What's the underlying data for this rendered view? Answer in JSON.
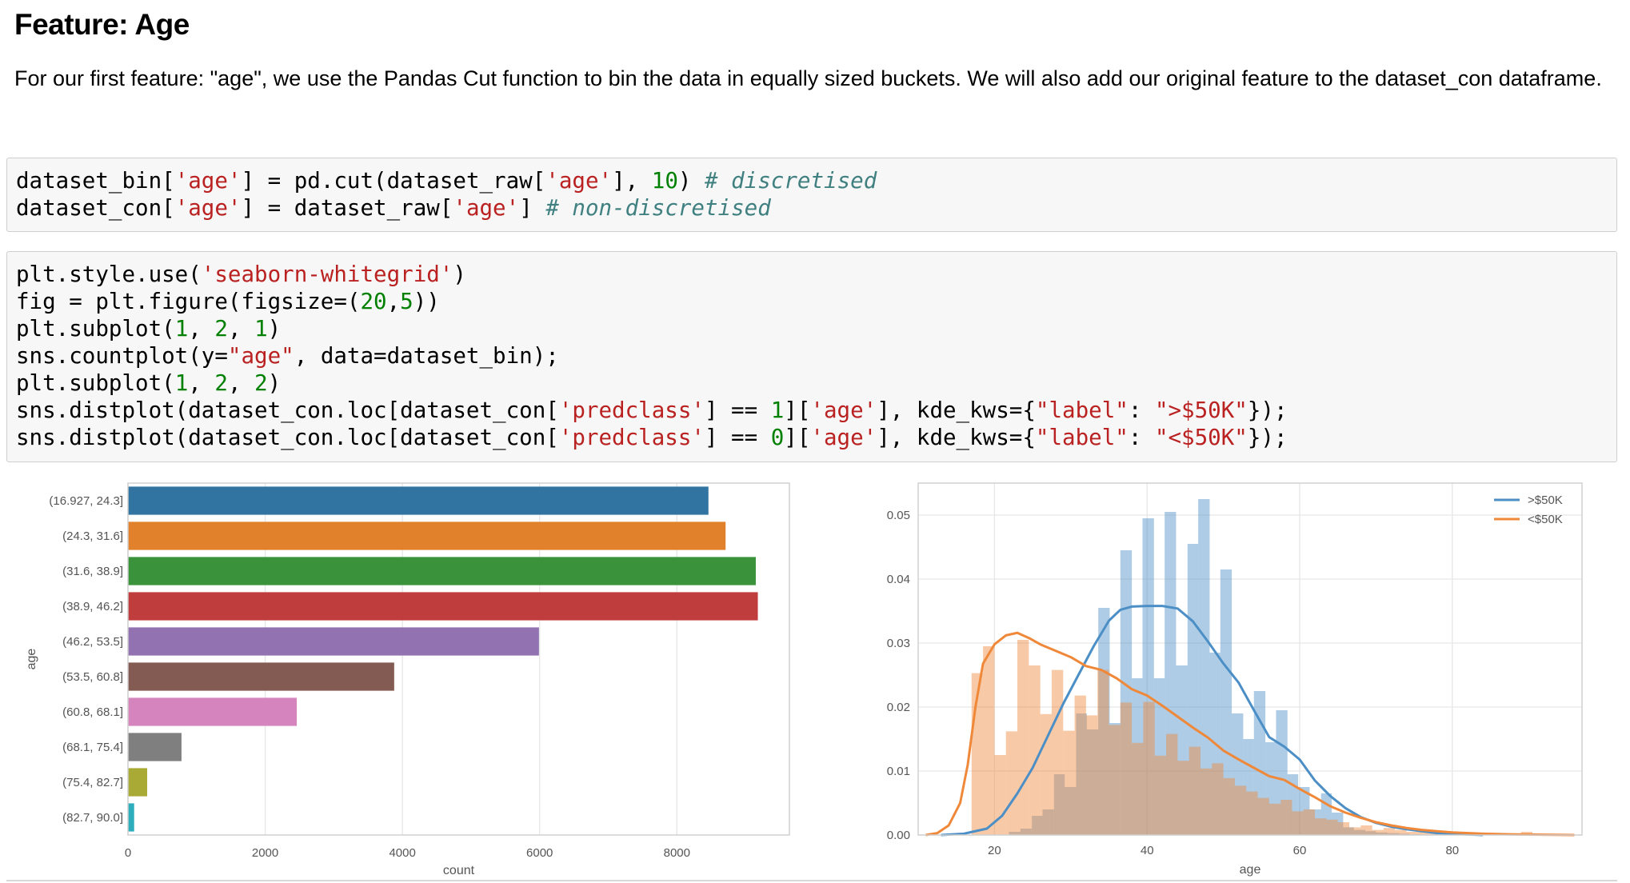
{
  "markdown": {
    "heading": "Feature: Age",
    "paragraph": "For our first feature: \"age\", we use the Pandas Cut function to bin the data in equally sized buckets. We will also add our original feature to the dataset_con dataframe."
  },
  "code_cells": [
    {
      "lines": [
        [
          [
            "dataset_bin[",
            ""
          ],
          [
            "'age'",
            "str"
          ],
          [
            "] = pd.cut(dataset_raw[",
            ""
          ],
          [
            "'age'",
            "str"
          ],
          [
            "], ",
            ""
          ],
          [
            "10",
            "num"
          ],
          [
            ") ",
            ""
          ],
          [
            "# discretised",
            "cmt"
          ]
        ],
        [
          [
            "dataset_con[",
            ""
          ],
          [
            "'age'",
            "str"
          ],
          [
            "] = dataset_raw[",
            ""
          ],
          [
            "'age'",
            "str"
          ],
          [
            "] ",
            ""
          ],
          [
            "# non-discretised",
            "cmt"
          ]
        ]
      ]
    },
    {
      "lines": [
        [
          [
            "plt.style.use(",
            ""
          ],
          [
            "'seaborn-whitegrid'",
            "str"
          ],
          [
            ")",
            ""
          ]
        ],
        [
          [
            "fig = plt.figure(figsize=(",
            ""
          ],
          [
            "20",
            "num"
          ],
          [
            ",",
            ""
          ],
          [
            "5",
            "num"
          ],
          [
            "))",
            ""
          ]
        ],
        [
          [
            "plt.subplot(",
            ""
          ],
          [
            "1",
            "num"
          ],
          [
            ", ",
            ""
          ],
          [
            "2",
            "num"
          ],
          [
            ", ",
            ""
          ],
          [
            "1",
            "num"
          ],
          [
            ")",
            ""
          ]
        ],
        [
          [
            "sns.countplot(y=",
            ""
          ],
          [
            "\"age\"",
            "str"
          ],
          [
            ", data=dataset_bin);",
            ""
          ]
        ],
        [
          [
            "plt.subplot(",
            ""
          ],
          [
            "1",
            "num"
          ],
          [
            ", ",
            ""
          ],
          [
            "2",
            "num"
          ],
          [
            ", ",
            ""
          ],
          [
            "2",
            "num"
          ],
          [
            ")",
            ""
          ]
        ],
        [
          [
            "sns.distplot(dataset_con.loc[dataset_con[",
            ""
          ],
          [
            "'predclass'",
            "str"
          ],
          [
            "] == ",
            ""
          ],
          [
            "1",
            "num"
          ],
          [
            "][",
            ""
          ],
          [
            "'age'",
            "str"
          ],
          [
            "], kde_kws={",
            ""
          ],
          [
            "\"label\"",
            "str"
          ],
          [
            ": ",
            ""
          ],
          [
            "\">$50K\"",
            "str"
          ],
          [
            "});",
            ""
          ]
        ],
        [
          [
            "sns.distplot(dataset_con.loc[dataset_con[",
            ""
          ],
          [
            "'predclass'",
            "str"
          ],
          [
            "] == ",
            ""
          ],
          [
            "0",
            "num"
          ],
          [
            "][",
            ""
          ],
          [
            "'age'",
            "str"
          ],
          [
            "], kde_kws={",
            ""
          ],
          [
            "\"label\"",
            "str"
          ],
          [
            ": ",
            ""
          ],
          [
            "\"<$50K\"",
            "str"
          ],
          [
            "});",
            ""
          ]
        ]
      ]
    }
  ],
  "chart_data": [
    {
      "type": "bar",
      "orientation": "horizontal",
      "categories": [
        "(16.927, 24.3]",
        "(24.3, 31.6]",
        "(31.6, 38.9]",
        "(38.9, 46.2]",
        "(46.2, 53.5]",
        "(53.5, 60.8]",
        "(60.8, 68.1]",
        "(68.1, 75.4]",
        "(75.4, 82.7]",
        "(82.7, 90.0]"
      ],
      "values": [
        8460,
        8710,
        9150,
        9180,
        5990,
        3880,
        2460,
        780,
        280,
        90
      ],
      "colors": [
        "#3274a1",
        "#e1812c",
        "#3a923a",
        "#c03d3e",
        "#9372b2",
        "#845b53",
        "#d684bd",
        "#7f7f7f",
        "#a9aa35",
        "#2eaebd"
      ],
      "xlabel": "count",
      "ylabel": "age",
      "xlim": [
        0,
        9640
      ],
      "xticks": [
        0,
        2000,
        4000,
        6000,
        8000
      ],
      "xticklabels": [
        "0",
        "2000",
        "4000",
        "6000",
        "8000"
      ],
      "grid": true
    },
    {
      "type": "histogram+kde",
      "xlabel": "age",
      "xlim": [
        10,
        97
      ],
      "ylim": [
        0,
        0.055
      ],
      "xticks": [
        20,
        40,
        60,
        80
      ],
      "xticklabels": [
        "20",
        "40",
        "60",
        "80"
      ],
      "yticks": [
        0,
        0.01,
        0.02,
        0.03,
        0.04,
        0.05
      ],
      "yticklabels": [
        "0.00",
        "0.01",
        "0.02",
        "0.03",
        "0.04",
        "0.05"
      ],
      "legend_position": "upper right",
      "grid": true,
      "series": [
        {
          "name": ">$50K",
          "color": "#4c8fc6",
          "hist_bins": [
            [
              19.0,
              20.5,
              0.0
            ],
            [
              20.5,
              21.9,
              0.0
            ],
            [
              21.9,
              23.4,
              0.0005
            ],
            [
              23.4,
              24.9,
              0.001
            ],
            [
              24.9,
              26.3,
              0.003
            ],
            [
              26.3,
              27.8,
              0.004
            ],
            [
              27.8,
              29.2,
              0.0095
            ],
            [
              29.2,
              30.7,
              0.0075
            ],
            [
              30.7,
              32.1,
              0.019
            ],
            [
              32.1,
              33.6,
              0.0165
            ],
            [
              33.6,
              35.1,
              0.0355
            ],
            [
              35.1,
              36.5,
              0.0175
            ],
            [
              36.5,
              38.0,
              0.0445
            ],
            [
              38.0,
              39.4,
              0.0245
            ],
            [
              39.4,
              40.9,
              0.0495
            ],
            [
              40.9,
              42.3,
              0.0245
            ],
            [
              42.3,
              43.8,
              0.0505
            ],
            [
              43.8,
              45.3,
              0.0265
            ],
            [
              45.3,
              46.7,
              0.0455
            ],
            [
              46.7,
              48.2,
              0.0525
            ],
            [
              48.2,
              49.6,
              0.0285
            ],
            [
              49.6,
              51.1,
              0.0415
            ],
            [
              51.1,
              52.6,
              0.019
            ],
            [
              52.6,
              54.0,
              0.015
            ],
            [
              54.0,
              55.5,
              0.0225
            ],
            [
              55.5,
              56.9,
              0.0145
            ],
            [
              56.9,
              58.4,
              0.0195
            ],
            [
              58.4,
              59.8,
              0.0095
            ],
            [
              59.8,
              61.3,
              0.0075
            ],
            [
              61.3,
              62.8,
              0.004
            ],
            [
              62.8,
              64.2,
              0.0065
            ],
            [
              64.2,
              65.7,
              0.0035
            ],
            [
              65.7,
              67.1,
              0.0012
            ],
            [
              67.1,
              68.6,
              0.0008
            ],
            [
              68.6,
              70.0,
              0.0006
            ],
            [
              70.0,
              71.5,
              0.0004
            ],
            [
              71.5,
              73.0,
              0.0003
            ],
            [
              73.0,
              74.4,
              0.0002
            ],
            [
              74.4,
              75.9,
              0.0001
            ]
          ],
          "kde": [
            [
              13,
              0
            ],
            [
              16,
              0.0002
            ],
            [
              19,
              0.001
            ],
            [
              21,
              0.003
            ],
            [
              23,
              0.0065
            ],
            [
              25,
              0.0105
            ],
            [
              27,
              0.0155
            ],
            [
              29,
              0.0205
            ],
            [
              31,
              0.025
            ],
            [
              33,
              0.0295
            ],
            [
              35,
              0.0335
            ],
            [
              36.5,
              0.0352
            ],
            [
              38,
              0.0357
            ],
            [
              40,
              0.0358
            ],
            [
              42,
              0.0358
            ],
            [
              44,
              0.0354
            ],
            [
              46,
              0.0334
            ],
            [
              48,
              0.0302
            ],
            [
              50,
              0.0268
            ],
            [
              52,
              0.0238
            ],
            [
              54,
              0.0195
            ],
            [
              56,
              0.0153
            ],
            [
              58,
              0.0138
            ],
            [
              60,
              0.0118
            ],
            [
              62,
              0.0085
            ],
            [
              64,
              0.0061
            ],
            [
              66,
              0.0042
            ],
            [
              68,
              0.0028
            ],
            [
              70,
              0.0019
            ],
            [
              72,
              0.0013
            ],
            [
              74,
              0.0009
            ],
            [
              76,
              0.0006
            ],
            [
              78,
              0.0003
            ],
            [
              80,
              0.0002
            ],
            [
              82,
              0.0001
            ],
            [
              84,
              0
            ]
          ]
        },
        {
          "name": "<$50K",
          "color": "#f0883a",
          "hist_bins": [
            [
              17.0,
              18.5,
              0.0253
            ],
            [
              18.5,
              20.0,
              0.0295
            ],
            [
              20.0,
              21.5,
              0.0125
            ],
            [
              21.5,
              23.0,
              0.0162
            ],
            [
              23.0,
              24.5,
              0.0305
            ],
            [
              24.5,
              26.0,
              0.0265
            ],
            [
              26.0,
              27.5,
              0.0189
            ],
            [
              27.5,
              29.0,
              0.0258
            ],
            [
              29.0,
              30.5,
              0.0163
            ],
            [
              30.5,
              32.0,
              0.0218
            ],
            [
              32.0,
              33.5,
              0.0187
            ],
            [
              33.5,
              35.0,
              0.0258
            ],
            [
              35.0,
              36.5,
              0.0172
            ],
            [
              36.5,
              38.0,
              0.0207
            ],
            [
              38.0,
              39.5,
              0.0144
            ],
            [
              39.5,
              41.0,
              0.0208
            ],
            [
              41.0,
              42.5,
              0.0124
            ],
            [
              42.5,
              44.0,
              0.0158
            ],
            [
              44.0,
              45.5,
              0.0116
            ],
            [
              45.5,
              47.0,
              0.0138
            ],
            [
              47.0,
              48.5,
              0.0104
            ],
            [
              48.5,
              50.0,
              0.0112
            ],
            [
              50.0,
              51.5,
              0.0089
            ],
            [
              51.5,
              53.0,
              0.0077
            ],
            [
              53.0,
              54.5,
              0.0068
            ],
            [
              54.5,
              56.0,
              0.0058
            ],
            [
              56.0,
              57.5,
              0.0049
            ],
            [
              57.5,
              59.0,
              0.0055
            ],
            [
              59.0,
              60.5,
              0.0037
            ],
            [
              60.5,
              62.0,
              0.004
            ],
            [
              62.0,
              63.5,
              0.0026
            ],
            [
              63.5,
              65.0,
              0.0024
            ],
            [
              65.0,
              66.5,
              0.002
            ],
            [
              66.5,
              68.0,
              0.0012
            ],
            [
              68.0,
              69.5,
              0.0015
            ],
            [
              69.5,
              71.0,
              0.0008
            ],
            [
              71.0,
              72.5,
              0.0011
            ],
            [
              72.5,
              74.0,
              0.0008
            ],
            [
              74.0,
              75.5,
              0.0005
            ],
            [
              75.5,
              77.0,
              0.0007
            ],
            [
              77.0,
              78.5,
              0.0004
            ],
            [
              78.5,
              80.0,
              0.0005
            ],
            [
              80.0,
              81.5,
              0.0003
            ],
            [
              81.5,
              83.0,
              0.0002
            ],
            [
              83.0,
              84.5,
              0.0002
            ],
            [
              84.5,
              86.0,
              0.0001
            ],
            [
              86.0,
              87.5,
              0.0001
            ],
            [
              87.5,
              89.0,
              0.0001
            ],
            [
              89.0,
              90.5,
              0.0005
            ]
          ],
          "kde": [
            [
              11,
              0
            ],
            [
              12.5,
              0.0003
            ],
            [
              14,
              0.0015
            ],
            [
              15.5,
              0.005
            ],
            [
              16.5,
              0.011
            ],
            [
              17.5,
              0.02
            ],
            [
              18.5,
              0.0268
            ],
            [
              20,
              0.0298
            ],
            [
              21.5,
              0.0312
            ],
            [
              23,
              0.0316
            ],
            [
              24.5,
              0.0308
            ],
            [
              26,
              0.0298
            ],
            [
              28,
              0.0288
            ],
            [
              30,
              0.0278
            ],
            [
              32,
              0.0264
            ],
            [
              34,
              0.0258
            ],
            [
              36,
              0.0245
            ],
            [
              38,
              0.0228
            ],
            [
              40,
              0.0218
            ],
            [
              42,
              0.0202
            ],
            [
              44,
              0.0185
            ],
            [
              46,
              0.0168
            ],
            [
              48,
              0.0152
            ],
            [
              50,
              0.0132
            ],
            [
              52,
              0.0118
            ],
            [
              54,
              0.0105
            ],
            [
              56,
              0.0092
            ],
            [
              58,
              0.0086
            ],
            [
              60,
              0.0072
            ],
            [
              62,
              0.0059
            ],
            [
              64,
              0.0045
            ],
            [
              66,
              0.0035
            ],
            [
              68,
              0.0027
            ],
            [
              70,
              0.002
            ],
            [
              72,
              0.0015
            ],
            [
              74,
              0.0011
            ],
            [
              76,
              0.0008
            ],
            [
              78,
              0.0006
            ],
            [
              80,
              0.0004
            ],
            [
              84,
              0.0002
            ],
            [
              88,
              0.0001
            ],
            [
              92,
              5e-05
            ],
            [
              96,
              0
            ]
          ]
        }
      ]
    }
  ]
}
